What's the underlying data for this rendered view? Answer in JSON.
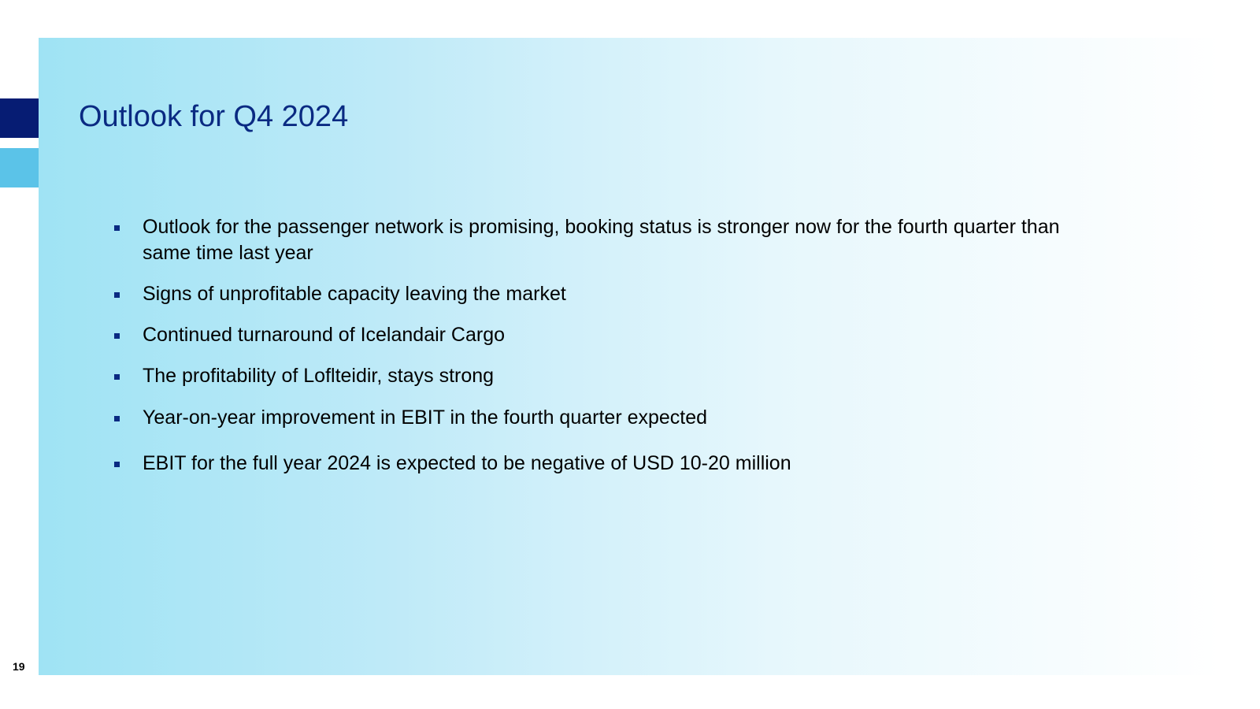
{
  "slide": {
    "title": "Outlook for Q4 2024",
    "bullets": [
      "Outlook for the passenger network is promising, booking status is stronger now for the fourth quarter than same time last year",
      "Signs of unprofitable capacity leaving the market",
      "Continued turnaround of Icelandair Cargo",
      "The profitability of Loflteidir, stays strong",
      "Year-on-year improvement in EBIT in the fourth quarter expected",
      "EBIT for the full year 2024 is expected to be negative of USD 10-20 million"
    ],
    "page_number": "19"
  },
  "colors": {
    "title": "#0a2a82",
    "accent_dark": "#061c73",
    "accent_light": "#5bc3e8",
    "bullet_marker": "#0a2a82"
  }
}
